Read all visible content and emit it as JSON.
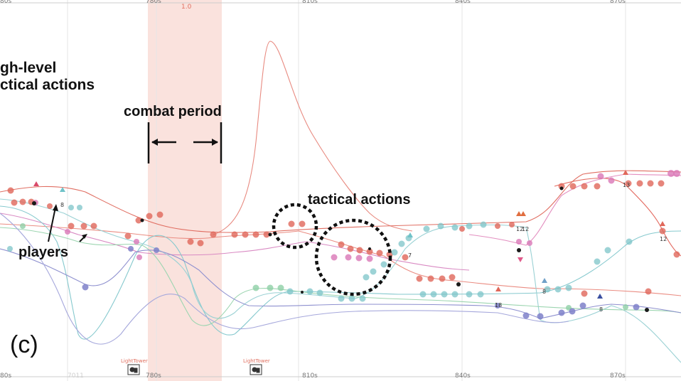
{
  "axis": {
    "top_ticks": [
      "80s",
      "780s",
      "810s",
      "840s",
      "870s"
    ],
    "bottom_ticks": [
      "80s",
      "780s",
      "810s",
      "840s",
      "870s"
    ],
    "faded_tick": "7011",
    "period_label": "1.0"
  },
  "annotations": {
    "high_level_1": "gh-level",
    "high_level_2": "ctical actions",
    "combat_period": "combat period",
    "tactical_actions": "tactical actions",
    "players": "players",
    "panel_label": "(c)"
  },
  "events": {
    "lighttower_1": "LightTower",
    "lighttower_2": "LightTower"
  },
  "markers": [
    "8",
    "13",
    "12",
    "7",
    "8",
    "12",
    "8",
    "12",
    "18"
  ],
  "colors": {
    "shade": "#f7d6d0",
    "red": "#e3695a",
    "pink": "#e07fb8",
    "teal": "#6fc2c8",
    "green": "#8fcfa6",
    "blue": "#7e80c9",
    "dark": "#1a1a1a"
  }
}
